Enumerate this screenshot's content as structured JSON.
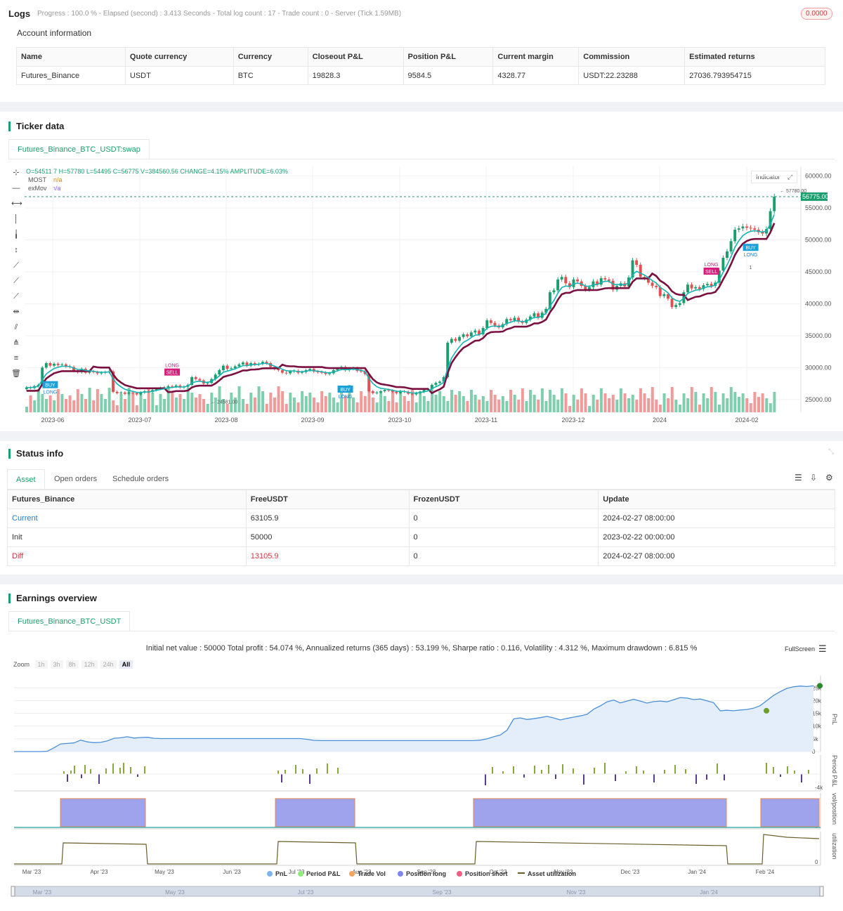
{
  "logs": {
    "title": "Logs",
    "summary": "Progress : 100.0 % - Elapsed (second) : 3.413  Seconds - Total log count : 17 - Trade count : 0 - Server (Tick 1.59MB)",
    "badge": "0.0000"
  },
  "account": {
    "title": "Account information",
    "columns": [
      "Name",
      "Quote currency",
      "Currency",
      "Closeout P&L",
      "Position P&L",
      "Current margin",
      "Commission",
      "Estimated returns"
    ],
    "row": [
      "Futures_Binance",
      "USDT",
      "BTC",
      "19828.3",
      "9584.5",
      "4328.77",
      "USDT:22.23288",
      "27036.793954715"
    ]
  },
  "ticker": {
    "title": "Ticker data",
    "tab": "Futures_Binance_BTC_USDT:swap",
    "ohlc": "O=54511.7 H=57780 L=54495 C=56775 V=384560.56 CHANGE=4.15% AMPLITUDE=6.03%",
    "legend": [
      {
        "name": "MOST",
        "value": "n/a",
        "color": "#e8891a"
      },
      {
        "name": "exMov",
        "value": "n/a",
        "color": "#8b5cf6"
      }
    ],
    "indicator_button": "Indicator",
    "last_price": "56775.00",
    "high_label": "57780.00",
    "low_label": "24581.00",
    "signals": [
      {
        "label": "BUY",
        "sub": "LONG"
      },
      {
        "label": "SELL",
        "sub": "LONG"
      },
      {
        "label": "BUY",
        "sub": "LONG"
      },
      {
        "label": "SELL",
        "sub": "LONG"
      },
      {
        "label": "BUY",
        "sub": "LONG"
      }
    ],
    "signal_count": "1",
    "icons": [
      "crosshair-icon",
      "horizontal-line-icon",
      "horizontal-ray-icon",
      "vertical-line-icon",
      "vertical-segment-icon",
      "vertical-arrow-icon",
      "trend-line-icon",
      "ray-icon",
      "extended-line-icon",
      "price-range-icon",
      "parallel-channel-icon",
      "pitchfork-icon",
      "fib-retracement-icon",
      "trash-icon"
    ]
  },
  "chart_data": [
    {
      "type": "candlestick",
      "x_ticks": [
        "2023-06",
        "2023-07",
        "2023-08",
        "2023-09",
        "2023-10",
        "2023-11",
        "2023-12",
        "2024",
        "2024-02"
      ],
      "y_ticks": [
        "60000.00",
        "55000.00",
        "50000.00",
        "45000.00",
        "40000.00",
        "35000.00",
        "30000.00",
        "25000.00"
      ],
      "ylim": [
        23000,
        61500
      ],
      "close": [
        26900,
        26800,
        27100,
        27300,
        30000,
        30700,
        30300,
        30600,
        30400,
        30500,
        30200,
        30100,
        29500,
        29300,
        29800,
        29200,
        29400,
        29300,
        29100,
        29200,
        29300,
        29400,
        26200,
        26000,
        26100,
        25900,
        26100,
        26000,
        25800,
        26100,
        26300,
        26200,
        26500,
        26700,
        26800,
        26900,
        27100,
        27000,
        27200,
        26900,
        27000,
        27300,
        28500,
        28200,
        28000,
        27500,
        27600,
        28200,
        28900,
        29600,
        30300,
        29800,
        29900,
        30200,
        30500,
        30800,
        30300,
        30700,
        30500,
        30600,
        30900,
        30700,
        30100,
        29800,
        29600,
        29200,
        29100,
        29400,
        29500,
        29200,
        29300,
        29600,
        29800,
        29400,
        29300,
        29200,
        29000,
        29100,
        29600,
        29800,
        30100,
        29600,
        29800,
        29900,
        29500,
        29400,
        29000,
        26300,
        26000,
        26100,
        26300,
        26500,
        26400,
        26200,
        26000,
        26300,
        26200,
        25900,
        25800,
        26000,
        26200,
        26500,
        26600,
        27300,
        27600,
        27800,
        28500,
        33900,
        34500,
        34200,
        34800,
        35200,
        34900,
        35500,
        35800,
        35200,
        36200,
        37400,
        37000,
        36600,
        36300,
        36800,
        37600,
        37400,
        37800,
        37200,
        37000,
        37500,
        38000,
        38500,
        37800,
        38600,
        39200,
        41800,
        42100,
        43800,
        44200,
        43200,
        42600,
        43800,
        43500,
        42800,
        42200,
        42600,
        43500,
        43000,
        44000,
        43800,
        43600,
        42200,
        42800,
        43200,
        42700,
        44100,
        46800,
        46100,
        44200,
        44000,
        43300,
        42800,
        42600,
        41200,
        41500,
        40800,
        39500,
        39800,
        40100,
        41800,
        43000,
        42400,
        42600,
        42300,
        42900,
        43100,
        42800,
        43300,
        45200,
        47200,
        48200,
        49800,
        51600,
        51800,
        52100,
        51900,
        51800,
        51600,
        51200,
        51000,
        51700,
        54500,
        56775
      ]
    },
    {
      "type": "area",
      "x_ticks": [
        "Mar '23",
        "Apr '23",
        "May '23",
        "Jun '23",
        "Jul '23",
        "Aug '23",
        "Sep '23",
        "Oct '23",
        "Nov '23",
        "Dec '23",
        "Jan '24",
        "Feb '24"
      ],
      "y_ticks": [
        "25k",
        "20k",
        "15k",
        "10k",
        "5k",
        "0"
      ],
      "ylabel": "PnL",
      "ylim": [
        0,
        27000
      ],
      "values": [
        0,
        0,
        0,
        0,
        0,
        100,
        1500,
        3000,
        3200,
        3400,
        4500,
        3800,
        3500,
        3600,
        4200,
        5200,
        5400,
        5800,
        5300,
        5500,
        5600,
        5200,
        5100,
        5100,
        5100,
        5100,
        5100,
        5100,
        5100,
        5100,
        5100,
        5100,
        5100,
        5100,
        5100,
        5100,
        5100,
        5100,
        5100,
        5100,
        5100,
        5100,
        5100,
        5100,
        4800,
        4400,
        4300,
        4300,
        4300,
        4300,
        4300,
        4300,
        4300,
        4300,
        4300,
        4300,
        4300,
        4300,
        4300,
        4300,
        4300,
        4300,
        4300,
        4300,
        4300,
        4300,
        4300,
        4300,
        4300,
        4300,
        4500,
        5000,
        5800,
        6500,
        8400,
        12800,
        13200,
        12600,
        12900,
        13300,
        13800,
        13200,
        12400,
        13000,
        13500,
        14000,
        14600,
        16600,
        17900,
        19500,
        20200,
        19100,
        19800,
        20500,
        19800,
        19000,
        19600,
        19800,
        19500,
        20300,
        21200,
        21000,
        20400,
        20600,
        19900,
        19200,
        16000,
        16200,
        16000,
        16300,
        16500,
        17000,
        18000,
        20000,
        22000,
        23500,
        24800,
        25400,
        25700,
        25500,
        25800
      ]
    },
    {
      "type": "bar",
      "ylabel": "Period P&L",
      "y_ticks": [
        "-4k"
      ]
    },
    {
      "type": "area",
      "ylabel": "vol/position",
      "y_ticks": [
        "0"
      ]
    },
    {
      "type": "line",
      "ylabel": "utilization",
      "y_ticks": [
        "0"
      ]
    }
  ],
  "status": {
    "title": "Status info",
    "tabs": [
      "Asset",
      "Open orders",
      "Schedule orders"
    ],
    "columns": [
      "Futures_Binance",
      "FreeUSDT",
      "FrozenUSDT",
      "Update"
    ],
    "rows": [
      {
        "label": "Current",
        "free": "63105.9",
        "frozen": "0",
        "update": "2024-02-27 08:00:00"
      },
      {
        "label": "Init",
        "free": "50000",
        "frozen": "0",
        "update": "2023-02-22 00:00:00"
      },
      {
        "label": "Diff",
        "free": "13105.9",
        "frozen": "0",
        "update": "2024-02-27 08:00:00"
      }
    ]
  },
  "earnings": {
    "title": "Earnings overview",
    "tab": "Futures_Binance_BTC_USDT",
    "summary": "Initial net value : 50000 Total profit : 54.074 %, Annualized returns (365 days) : 53.199 %, Sharpe ratio : 0.116, Volatility : 4.312 %, Maximum drawdown : 6.815 %",
    "fullscreen": "FullScreen",
    "zoom_label": "Zoom",
    "zoom_options": [
      "1h",
      "3h",
      "8h",
      "12h",
      "24h",
      "All"
    ],
    "legend": [
      {
        "name": "PnL",
        "color": "#7cb5ec"
      },
      {
        "name": "Period P&L",
        "color": "#90ed7d"
      },
      {
        "name": "Trade Vol",
        "color": "#f7a35c"
      },
      {
        "name": "Position long",
        "color": "#8085e9"
      },
      {
        "name": "Position short",
        "color": "#f15c80"
      },
      {
        "name": "Asset utilization",
        "color": "#6b5d2a"
      }
    ],
    "navigator_ticks": [
      "Mar '23",
      "May '23",
      "Jul '23",
      "Sep '23",
      "Nov '23",
      "Jan '24"
    ]
  }
}
